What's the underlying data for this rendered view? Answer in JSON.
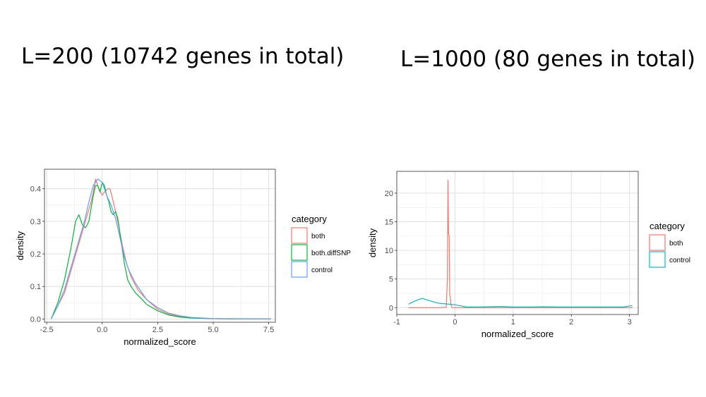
{
  "slide": {
    "title_left": "L=200 (10742 genes in total)",
    "title_right": "L=1000 (80 genes in total)"
  },
  "chart_data": [
    {
      "type": "line",
      "subtype": "density",
      "xlabel": "normalized_score",
      "ylabel": "density",
      "xlim": [
        -2.6,
        7.8
      ],
      "ylim": [
        -0.01,
        0.46
      ],
      "xticks": [
        -2.5,
        0.0,
        2.5,
        5.0,
        7.5
      ],
      "xtick_labels": [
        "-2.5",
        "0.0",
        "2.5",
        "5.0",
        "7.5"
      ],
      "yticks": [
        0.0,
        0.1,
        0.2,
        0.3,
        0.4
      ],
      "ytick_labels": [
        "0.0",
        "0.1",
        "0.2",
        "0.3",
        "0.4"
      ],
      "grid": true,
      "legend": {
        "title": "category",
        "position": "right"
      },
      "series": [
        {
          "name": "both",
          "color": "#F8766D",
          "x": [
            -2.3,
            -2.0,
            -1.7,
            -1.4,
            -1.1,
            -0.8,
            -0.5,
            -0.4,
            -0.3,
            -0.15,
            0.0,
            0.1,
            0.25,
            0.35,
            0.5,
            0.7,
            0.9,
            1.1,
            1.3,
            1.6,
            2.0,
            2.5,
            3.0,
            3.5,
            4.0,
            5.0,
            6.0,
            7.6
          ],
          "y": [
            0.0,
            0.04,
            0.08,
            0.15,
            0.22,
            0.29,
            0.36,
            0.39,
            0.43,
            0.4,
            0.38,
            0.39,
            0.4,
            0.4,
            0.36,
            0.3,
            0.23,
            0.17,
            0.13,
            0.09,
            0.06,
            0.03,
            0.015,
            0.008,
            0.004,
            0.001,
            0.0,
            0.0
          ]
        },
        {
          "name": "both.diffSNP",
          "color": "#00BA38",
          "x": [
            -2.3,
            -2.0,
            -1.7,
            -1.4,
            -1.2,
            -1.05,
            -0.9,
            -0.75,
            -0.6,
            -0.5,
            -0.4,
            -0.3,
            -0.2,
            -0.1,
            0.0,
            0.1,
            0.2,
            0.3,
            0.4,
            0.5,
            0.6,
            0.7,
            0.85,
            1.0,
            1.15,
            1.3,
            1.5,
            1.8,
            2.0,
            2.5,
            3.0,
            3.5,
            4.0,
            5.0,
            7.6
          ],
          "y": [
            0.0,
            0.05,
            0.12,
            0.22,
            0.3,
            0.32,
            0.29,
            0.28,
            0.3,
            0.34,
            0.38,
            0.41,
            0.41,
            0.39,
            0.42,
            0.41,
            0.38,
            0.36,
            0.33,
            0.32,
            0.33,
            0.31,
            0.24,
            0.17,
            0.12,
            0.1,
            0.08,
            0.06,
            0.045,
            0.025,
            0.012,
            0.006,
            0.003,
            0.001,
            0.0
          ]
        },
        {
          "name": "control",
          "color": "#619CFF",
          "x": [
            -2.3,
            -2.0,
            -1.7,
            -1.4,
            -1.1,
            -0.8,
            -0.6,
            -0.4,
            -0.2,
            0.0,
            0.2,
            0.4,
            0.6,
            0.8,
            1.0,
            1.2,
            1.5,
            1.8,
            2.0,
            2.5,
            3.0,
            3.5,
            4.0,
            5.0,
            6.0,
            7.6
          ],
          "y": [
            0.0,
            0.04,
            0.09,
            0.16,
            0.23,
            0.3,
            0.36,
            0.41,
            0.43,
            0.42,
            0.38,
            0.35,
            0.31,
            0.25,
            0.19,
            0.15,
            0.11,
            0.08,
            0.06,
            0.035,
            0.018,
            0.01,
            0.005,
            0.001,
            0.0,
            0.0
          ]
        }
      ]
    },
    {
      "type": "line",
      "subtype": "density",
      "xlabel": "normalized_score",
      "ylabel": "density",
      "xlim": [
        -1.0,
        3.15
      ],
      "ylim": [
        -1.2,
        23.8
      ],
      "xticks": [
        -1,
        0,
        1,
        2,
        3
      ],
      "xtick_labels": [
        "-1",
        "0",
        "1",
        "2",
        "3"
      ],
      "yticks": [
        0,
        5,
        10,
        15,
        20
      ],
      "ytick_labels": [
        "0",
        "5",
        "10",
        "15",
        "20"
      ],
      "grid": true,
      "legend": {
        "title": "category",
        "position": "right"
      },
      "series": [
        {
          "name": "both",
          "color": "#F8766D",
          "x": [
            -0.8,
            -0.3,
            -0.15,
            -0.13,
            -0.12,
            -0.11,
            -0.1,
            -0.09,
            -0.08,
            -0.07,
            -0.06,
            -0.05,
            -0.03,
            0.0,
            0.3,
            1.0,
            2.0,
            3.05
          ],
          "y": [
            0.0,
            0.0,
            0.05,
            5.0,
            22.3,
            13.0,
            12.5,
            2.2,
            2.0,
            0.6,
            0.2,
            0.05,
            0.0,
            0.0,
            0.0,
            0.0,
            0.0,
            0.0
          ]
        },
        {
          "name": "control",
          "color": "#00BFC4",
          "x": [
            -0.8,
            -0.7,
            -0.6,
            -0.55,
            -0.5,
            -0.4,
            -0.3,
            -0.2,
            -0.1,
            0.0,
            0.1,
            0.2,
            0.4,
            0.6,
            0.8,
            1.0,
            1.3,
            1.5,
            1.8,
            2.0,
            2.3,
            2.6,
            2.9,
            3.0,
            3.05
          ],
          "y": [
            0.6,
            1.1,
            1.5,
            1.6,
            1.4,
            1.1,
            0.8,
            0.7,
            0.6,
            0.5,
            0.3,
            0.1,
            0.1,
            0.15,
            0.2,
            0.1,
            0.1,
            0.15,
            0.1,
            0.1,
            0.1,
            0.1,
            0.1,
            0.3,
            0.3
          ]
        }
      ]
    }
  ]
}
